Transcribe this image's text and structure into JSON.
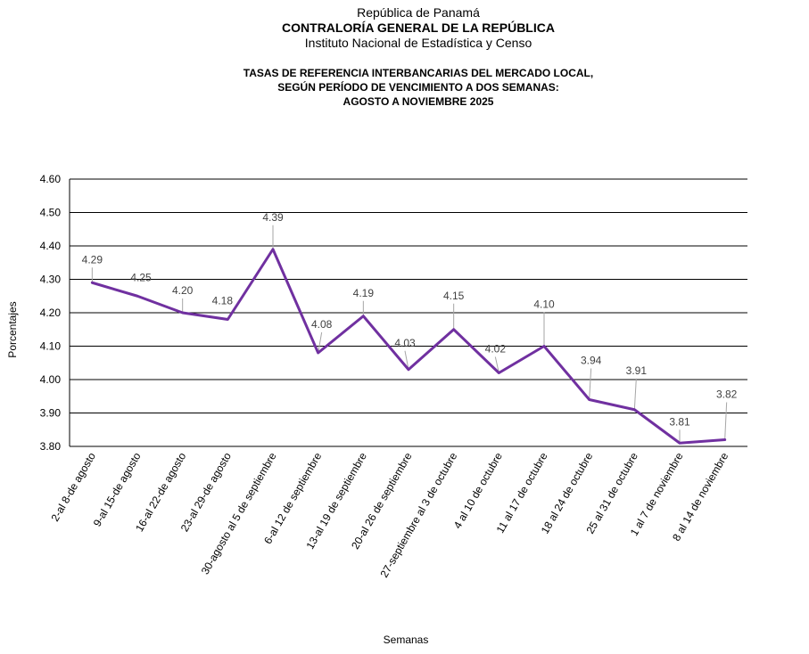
{
  "header": {
    "line1": "República de Panamá",
    "line2": "CONTRALORÍA GENERAL DE LA REPÚBLICA",
    "line3": "Instituto Nacional de Estadística y Censo"
  },
  "chart_data": {
    "type": "line",
    "title": [
      "TASAS DE REFERENCIA INTERBANCARIAS DEL MERCADO LOCAL,",
      "SEGÚN PERÍODO DE VENCIMIENTO A DOS SEMANAS:",
      "AGOSTO A NOVIEMBRE 2025"
    ],
    "xlabel": "Semanas",
    "ylabel": "Porcentajes",
    "ylim": [
      3.8,
      4.6
    ],
    "yticks": [
      "3.80",
      "3.90",
      "4.00",
      "4.10",
      "4.20",
      "4.30",
      "4.40",
      "4.50",
      "4.60"
    ],
    "grid": true,
    "line_color": "#7030a0",
    "categories": [
      "2-al 8-de agosto",
      "9-al 15-de agosto",
      "16-al 22-de agosto",
      "23-al 29-de agosto",
      "30-agosto al 5 de septiembre",
      "6-al 12 de septiembre",
      "13-al 19 de septiembre",
      "20-al 26 de septiembre",
      "27-septiembre al 3 de octubre",
      "4 al 10 de octubre",
      "11 al 17 de octubre",
      "18 al 24 de octubre",
      "25 al 31 de octubre",
      "1 al 7 de noviembre",
      "8 al 14 de noviembre"
    ],
    "values": [
      4.29,
      4.25,
      4.2,
      4.18,
      4.39,
      4.08,
      4.19,
      4.03,
      4.15,
      4.02,
      4.1,
      3.94,
      3.91,
      3.81,
      3.82
    ],
    "value_labels": [
      "4.29",
      "4.25",
      "4.20",
      "4.18",
      "4.39",
      "4.08",
      "4.19",
      "4.03",
      "4.15",
      "4.02",
      "4.10",
      "3.94",
      "3.91",
      "3.81",
      "3.82"
    ]
  }
}
